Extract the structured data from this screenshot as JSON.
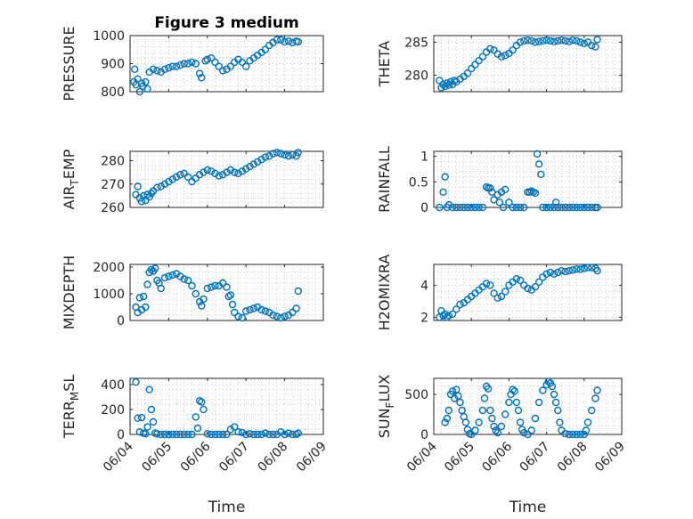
{
  "chart_data": [
    {
      "type": "scatter",
      "title": "Figure 3 medium",
      "ylabel": "PRESSURE",
      "ylabel_sub": "",
      "ylabel_suffix": "",
      "ylim": [
        800,
        1000
      ],
      "yticks": [
        800,
        900,
        1000
      ],
      "xlim": [
        0,
        5
      ],
      "xticks": [
        0,
        1,
        2,
        3,
        4,
        5
      ],
      "xticklabels": [
        "06/04",
        "06/05",
        "06/06",
        "06/07",
        "06/08",
        "06/09"
      ],
      "show_xticklabels": false,
      "xlabel": "",
      "series": [
        {
          "x": [
            0.1,
            0.12,
            0.15,
            0.2,
            0.25,
            0.3,
            0.33,
            0.4,
            0.45,
            0.5,
            0.6,
            0.7,
            0.8,
            0.9,
            1.0,
            1.1,
            1.2,
            1.3,
            1.4,
            1.5,
            1.6,
            1.7,
            1.8,
            1.85,
            1.95,
            2.0,
            2.1,
            2.2,
            2.3,
            2.4,
            2.5,
            2.6,
            2.7,
            2.8,
            2.9,
            3.0,
            3.1,
            3.2,
            3.3,
            3.4,
            3.5,
            3.6,
            3.7,
            3.8,
            3.9,
            4.0,
            4.1,
            4.2,
            4.3,
            4.35
          ],
          "y": [
            835,
            880,
            825,
            845,
            800,
            830,
            820,
            835,
            810,
            870,
            880,
            875,
            870,
            880,
            885,
            890,
            890,
            895,
            900,
            900,
            905,
            900,
            865,
            850,
            910,
            915,
            920,
            905,
            890,
            875,
            880,
            890,
            905,
            915,
            905,
            890,
            910,
            920,
            930,
            940,
            950,
            965,
            975,
            985,
            985,
            978,
            980,
            975,
            980,
            978
          ]
        }
      ]
    },
    {
      "type": "scatter",
      "title": "",
      "ylabel": "THETA",
      "ylabel_sub": "",
      "ylabel_suffix": "",
      "ylim": [
        277.5,
        286
      ],
      "yticks": [
        280,
        285
      ],
      "xlim": [
        0,
        5
      ],
      "xticks": [
        0,
        1,
        2,
        3,
        4,
        5
      ],
      "xticklabels": [
        "06/04",
        "06/05",
        "06/06",
        "06/07",
        "06/08",
        "06/09"
      ],
      "show_xticklabels": false,
      "xlabel": "",
      "series": [
        {
          "x": [
            0.15,
            0.2,
            0.25,
            0.3,
            0.35,
            0.4,
            0.45,
            0.5,
            0.55,
            0.6,
            0.7,
            0.8,
            0.9,
            1.0,
            1.1,
            1.2,
            1.3,
            1.4,
            1.5,
            1.6,
            1.7,
            1.8,
            1.9,
            2.0,
            2.1,
            2.2,
            2.3,
            2.4,
            2.5,
            2.6,
            2.7,
            2.8,
            2.9,
            3.0,
            3.1,
            3.2,
            3.3,
            3.4,
            3.5,
            3.6,
            3.7,
            3.8,
            3.9,
            4.0,
            4.1,
            4.2,
            4.3,
            4.35
          ],
          "y": [
            279.2,
            278.1,
            278.6,
            278.3,
            278.8,
            278.5,
            279.0,
            278.6,
            279.2,
            279.0,
            279.4,
            279.8,
            280.3,
            281.0,
            281.6,
            282.2,
            282.8,
            283.5,
            284.0,
            283.8,
            283.2,
            282.8,
            283.0,
            283.3,
            283.8,
            284.5,
            285.0,
            285.2,
            285.3,
            285.2,
            285.0,
            285.1,
            285.2,
            285.3,
            285.2,
            285.1,
            285.2,
            285.3,
            285.2,
            285.1,
            285.3,
            285.2,
            285.0,
            284.8,
            285.0,
            284.5,
            284.3,
            285.4
          ]
        }
      ]
    },
    {
      "type": "scatter",
      "title": "",
      "ylabel": "AIR",
      "ylabel_sub": "T",
      "ylabel_suffix": "EMP",
      "ylim": [
        260,
        284
      ],
      "yticks": [
        260,
        270,
        280
      ],
      "xlim": [
        0,
        5
      ],
      "xticks": [
        0,
        1,
        2,
        3,
        4,
        5
      ],
      "xticklabels": [
        "06/04",
        "06/05",
        "06/06",
        "06/07",
        "06/08",
        "06/09"
      ],
      "show_xticklabels": false,
      "xlabel": "",
      "series": [
        {
          "x": [
            0.15,
            0.2,
            0.25,
            0.3,
            0.35,
            0.4,
            0.45,
            0.5,
            0.55,
            0.6,
            0.7,
            0.8,
            0.9,
            1.0,
            1.1,
            1.2,
            1.3,
            1.4,
            1.5,
            1.6,
            1.7,
            1.8,
            1.9,
            2.0,
            2.1,
            2.2,
            2.3,
            2.4,
            2.5,
            2.6,
            2.7,
            2.8,
            2.9,
            3.0,
            3.1,
            3.2,
            3.3,
            3.4,
            3.5,
            3.6,
            3.7,
            3.8,
            3.9,
            4.0,
            4.1,
            4.2,
            4.3,
            4.35
          ],
          "y": [
            265.5,
            269.0,
            264.0,
            262.5,
            265.0,
            263.0,
            265.5,
            264.5,
            266.0,
            267.0,
            268.5,
            269.0,
            270.0,
            271.0,
            272.0,
            273.0,
            274.0,
            274.5,
            273.0,
            271.0,
            272.5,
            274.0,
            275.0,
            276.0,
            275.5,
            274.5,
            273.5,
            274.0,
            275.0,
            276.0,
            275.0,
            274.5,
            275.5,
            276.5,
            277.5,
            278.5,
            279.5,
            280.5,
            281.5,
            282.0,
            283.0,
            283.5,
            283.0,
            282.5,
            282.0,
            282.5,
            282.0,
            283.5
          ]
        }
      ]
    },
    {
      "type": "scatter",
      "title": "",
      "ylabel": "RAINFALL",
      "ylabel_sub": "",
      "ylabel_suffix": "",
      "ylim": [
        0,
        1.1
      ],
      "yticks": [
        0,
        0.5,
        1
      ],
      "xlim": [
        0,
        5
      ],
      "xticks": [
        0,
        1,
        2,
        3,
        4,
        5
      ],
      "xticklabels": [
        "06/04",
        "06/05",
        "06/06",
        "06/07",
        "06/08",
        "06/09"
      ],
      "show_xticklabels": false,
      "xlabel": "",
      "series": [
        {
          "x": [
            0.15,
            0.25,
            0.3,
            0.35,
            0.4,
            0.5,
            0.6,
            0.7,
            0.8,
            0.9,
            1.0,
            1.1,
            1.2,
            1.3,
            1.4,
            1.45,
            1.5,
            1.55,
            1.6,
            1.7,
            1.75,
            1.8,
            1.85,
            1.9,
            2.0,
            2.1,
            2.2,
            2.3,
            2.4,
            2.5,
            2.55,
            2.6,
            2.65,
            2.7,
            2.75,
            2.8,
            2.85,
            2.9,
            3.0,
            3.1,
            3.2,
            3.25,
            3.3,
            3.4,
            3.5,
            3.6,
            3.7,
            3.8,
            3.9,
            4.0,
            4.1,
            4.2,
            4.3,
            4.35
          ],
          "y": [
            0,
            0.3,
            0.6,
            0,
            0.05,
            0,
            0,
            0,
            0,
            0,
            0,
            0,
            0,
            0,
            0.4,
            0.38,
            0.38,
            0.3,
            0.15,
            0.25,
            0.1,
            0.3,
            0,
            0.35,
            0.1,
            0,
            0,
            0,
            0,
            0.3,
            0.3,
            0.32,
            0.3,
            0.28,
            1.05,
            0.85,
            0.65,
            0,
            0,
            0,
            0,
            0.1,
            0,
            0,
            0,
            0,
            0,
            0,
            0,
            0,
            0,
            0,
            0,
            0
          ]
        }
      ]
    },
    {
      "type": "scatter",
      "title": "",
      "ylabel": "MIXDEPTH",
      "ylabel_sub": "",
      "ylabel_suffix": "",
      "ylim": [
        0,
        2100
      ],
      "yticks": [
        0,
        1000,
        2000
      ],
      "xlim": [
        0,
        5
      ],
      "xticks": [
        0,
        1,
        2,
        3,
        4,
        5
      ],
      "xticklabels": [
        "06/04",
        "06/05",
        "06/06",
        "06/07",
        "06/08",
        "06/09"
      ],
      "show_xticklabels": false,
      "xlabel": "",
      "series": [
        {
          "x": [
            0.15,
            0.2,
            0.25,
            0.3,
            0.35,
            0.4,
            0.45,
            0.5,
            0.55,
            0.6,
            0.65,
            0.7,
            0.75,
            0.8,
            0.9,
            1.0,
            1.1,
            1.2,
            1.3,
            1.4,
            1.5,
            1.6,
            1.7,
            1.8,
            1.85,
            1.9,
            2.0,
            2.1,
            2.2,
            2.3,
            2.4,
            2.5,
            2.55,
            2.6,
            2.65,
            2.7,
            2.8,
            2.9,
            3.0,
            3.1,
            3.2,
            3.3,
            3.4,
            3.5,
            3.6,
            3.7,
            3.8,
            3.9,
            4.0,
            4.1,
            4.2,
            4.3,
            4.35
          ],
          "y": [
            500,
            300,
            850,
            400,
            900,
            500,
            1350,
            1800,
            1900,
            1850,
            1950,
            1500,
            1400,
            1200,
            1600,
            1650,
            1700,
            1750,
            1650,
            1550,
            1500,
            1300,
            1000,
            700,
            550,
            800,
            1200,
            1250,
            1300,
            1300,
            1400,
            1250,
            900,
            950,
            600,
            300,
            150,
            100,
            350,
            400,
            450,
            500,
            400,
            350,
            300,
            200,
            150,
            100,
            150,
            200,
            300,
            450,
            1100
          ]
        }
      ]
    },
    {
      "type": "scatter",
      "title": "",
      "ylabel": "H2OMIXRA",
      "ylabel_sub": "",
      "ylabel_suffix": "",
      "ylim": [
        1.8,
        5.3
      ],
      "yticks": [
        2,
        4
      ],
      "xlim": [
        0,
        5
      ],
      "xticks": [
        0,
        1,
        2,
        3,
        4,
        5
      ],
      "xticklabels": [
        "06/04",
        "06/05",
        "06/06",
        "06/07",
        "06/08",
        "06/09"
      ],
      "show_xticklabels": false,
      "xlabel": "",
      "series": [
        {
          "x": [
            0.15,
            0.2,
            0.25,
            0.3,
            0.35,
            0.4,
            0.5,
            0.6,
            0.7,
            0.8,
            0.9,
            1.0,
            1.1,
            1.2,
            1.3,
            1.4,
            1.5,
            1.6,
            1.7,
            1.8,
            1.9,
            2.0,
            2.1,
            2.2,
            2.3,
            2.4,
            2.5,
            2.6,
            2.7,
            2.8,
            2.9,
            3.0,
            3.1,
            3.2,
            3.3,
            3.4,
            3.5,
            3.6,
            3.7,
            3.8,
            3.9,
            4.0,
            4.1,
            4.2,
            4.3,
            4.35
          ],
          "y": [
            2.0,
            2.4,
            2.1,
            2.2,
            2.0,
            2.1,
            2.2,
            2.5,
            2.8,
            2.9,
            3.1,
            3.3,
            3.5,
            3.7,
            3.9,
            4.1,
            4.0,
            3.5,
            3.2,
            3.3,
            3.6,
            4.0,
            4.2,
            4.4,
            4.3,
            4.0,
            3.8,
            3.7,
            3.9,
            4.2,
            4.5,
            4.7,
            4.8,
            4.7,
            4.8,
            4.9,
            4.85,
            4.9,
            4.95,
            5.0,
            5.0,
            5.05,
            5.1,
            5.1,
            5.05,
            4.9
          ]
        }
      ]
    },
    {
      "type": "scatter",
      "title": "",
      "ylabel": "TERR",
      "ylabel_sub": "M",
      "ylabel_suffix": "SL",
      "ylim": [
        0,
        450
      ],
      "yticks": [
        0,
        200,
        400
      ],
      "xlim": [
        0,
        5
      ],
      "xticks": [
        0,
        1,
        2,
        3,
        4,
        5
      ],
      "xticklabels": [
        "06/04",
        "06/05",
        "06/06",
        "06/07",
        "06/08",
        "06/09"
      ],
      "show_xticklabels": true,
      "xlabel": "Time",
      "series": [
        {
          "x": [
            0.15,
            0.2,
            0.25,
            0.3,
            0.35,
            0.4,
            0.45,
            0.5,
            0.55,
            0.6,
            0.65,
            0.7,
            0.8,
            0.9,
            1.0,
            1.1,
            1.2,
            1.3,
            1.4,
            1.5,
            1.6,
            1.7,
            1.75,
            1.8,
            1.85,
            1.9,
            2.0,
            2.1,
            2.2,
            2.3,
            2.4,
            2.5,
            2.6,
            2.7,
            2.8,
            2.9,
            3.0,
            3.1,
            3.2,
            3.3,
            3.4,
            3.5,
            3.6,
            3.7,
            3.8,
            3.9,
            4.0,
            4.1,
            4.2,
            4.3,
            4.35
          ],
          "y": [
            420,
            130,
            20,
            135,
            10,
            5,
            60,
            360,
            200,
            100,
            10,
            5,
            0,
            0,
            0,
            0,
            0,
            0,
            0,
            0,
            0,
            140,
            50,
            270,
            260,
            200,
            5,
            0,
            0,
            0,
            0,
            0,
            40,
            60,
            20,
            15,
            0,
            5,
            0,
            0,
            0,
            10,
            0,
            0,
            0,
            20,
            0,
            10,
            0,
            0,
            10
          ]
        }
      ]
    },
    {
      "type": "scatter",
      "title": "",
      "ylabel": "SUN",
      "ylabel_sub": "F",
      "ylabel_suffix": "LUX",
      "ylim": [
        0,
        700
      ],
      "yticks": [
        0,
        500
      ],
      "xlim": [
        0,
        5
      ],
      "xticks": [
        0,
        1,
        2,
        3,
        4,
        5
      ],
      "xticklabels": [
        "06/04",
        "06/05",
        "06/06",
        "06/07",
        "06/08",
        "06/09"
      ],
      "show_xticklabels": true,
      "xlabel": "Time",
      "series": [
        {
          "x": [
            0.3,
            0.35,
            0.4,
            0.45,
            0.5,
            0.55,
            0.6,
            0.65,
            0.7,
            0.75,
            0.8,
            0.85,
            0.9,
            0.95,
            1.0,
            1.1,
            1.2,
            1.3,
            1.35,
            1.4,
            1.45,
            1.5,
            1.55,
            1.6,
            1.65,
            1.7,
            1.8,
            1.9,
            2.0,
            2.05,
            2.1,
            2.15,
            2.2,
            2.25,
            2.3,
            2.35,
            2.4,
            2.5,
            2.6,
            2.7,
            2.8,
            2.9,
            3.0,
            3.05,
            3.1,
            3.15,
            3.2,
            3.25,
            3.3,
            3.35,
            3.4,
            3.5,
            3.6,
            3.7,
            3.8,
            3.9,
            4.0,
            4.05,
            4.1,
            4.2,
            4.3,
            4.35
          ],
          "y": [
            150,
            200,
            300,
            500,
            540,
            450,
            560,
            480,
            400,
            300,
            220,
            150,
            60,
            10,
            0,
            50,
            150,
            300,
            450,
            600,
            570,
            300,
            200,
            100,
            50,
            20,
            100,
            250,
            400,
            500,
            560,
            540,
            400,
            300,
            150,
            60,
            20,
            0,
            50,
            200,
            400,
            550,
            620,
            660,
            640,
            600,
            500,
            400,
            300,
            150,
            50,
            10,
            0,
            0,
            0,
            0,
            0,
            50,
            150,
            300,
            450,
            550
          ]
        }
      ]
    }
  ],
  "colors": {
    "marker": "#0072BD",
    "axis": "#262626"
  }
}
